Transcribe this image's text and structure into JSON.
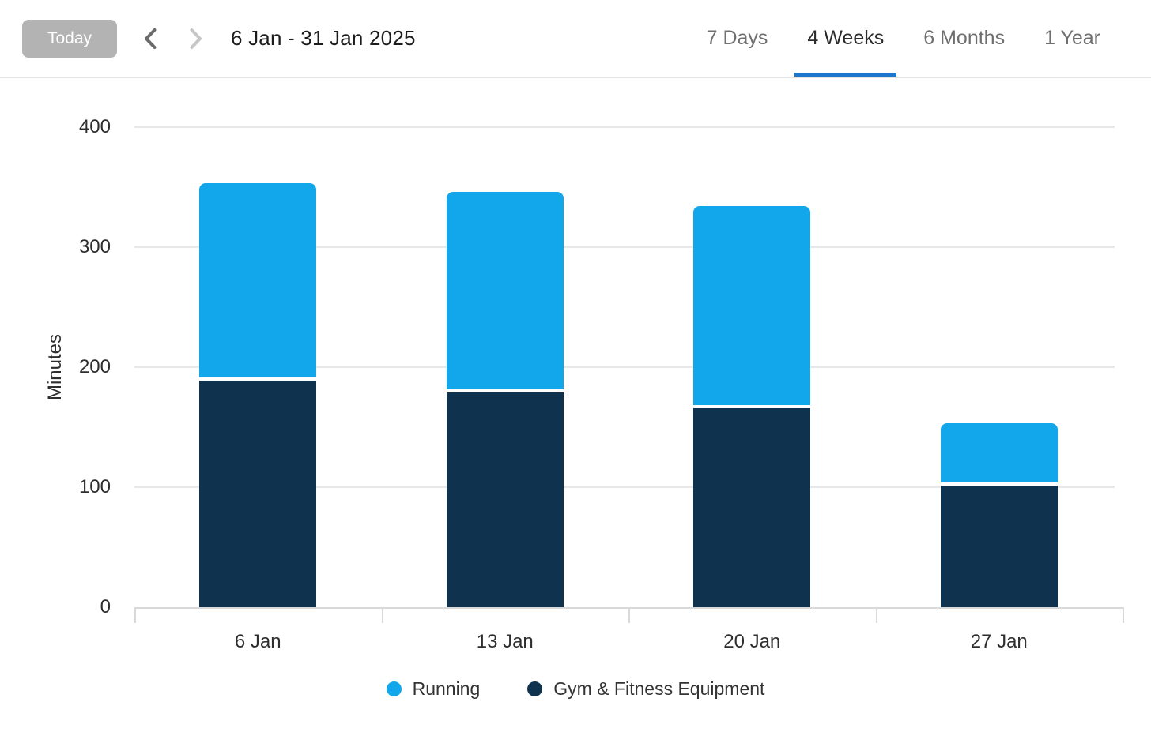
{
  "header": {
    "today_button": "Today",
    "date_range": "6 Jan - 31 Jan 2025",
    "tabs": [
      {
        "label": "7 Days",
        "active": false
      },
      {
        "label": "4 Weeks",
        "active": true
      },
      {
        "label": "6 Months",
        "active": false
      },
      {
        "label": "1 Year",
        "active": false
      }
    ],
    "active_tab_color": "#1C77CD"
  },
  "chart_data": {
    "type": "bar",
    "stacked": true,
    "title": "",
    "xlabel": "",
    "ylabel": "Minutes",
    "categories": [
      "6 Jan",
      "13 Jan",
      "20 Jan",
      "27 Jan"
    ],
    "series": [
      {
        "name": "Running",
        "color": "#12A7EB",
        "values": [
          164,
          167,
          168,
          52
        ]
      },
      {
        "name": "Gym & Fitness Equipment",
        "color": "#0F334E",
        "values": [
          189,
          179,
          166,
          101
        ]
      }
    ],
    "totals": [
      353,
      346,
      334,
      153
    ],
    "ylim": [
      0,
      400
    ],
    "yticks": [
      0,
      100,
      200,
      300,
      400
    ],
    "grid": true,
    "legend_position": "bottom"
  }
}
